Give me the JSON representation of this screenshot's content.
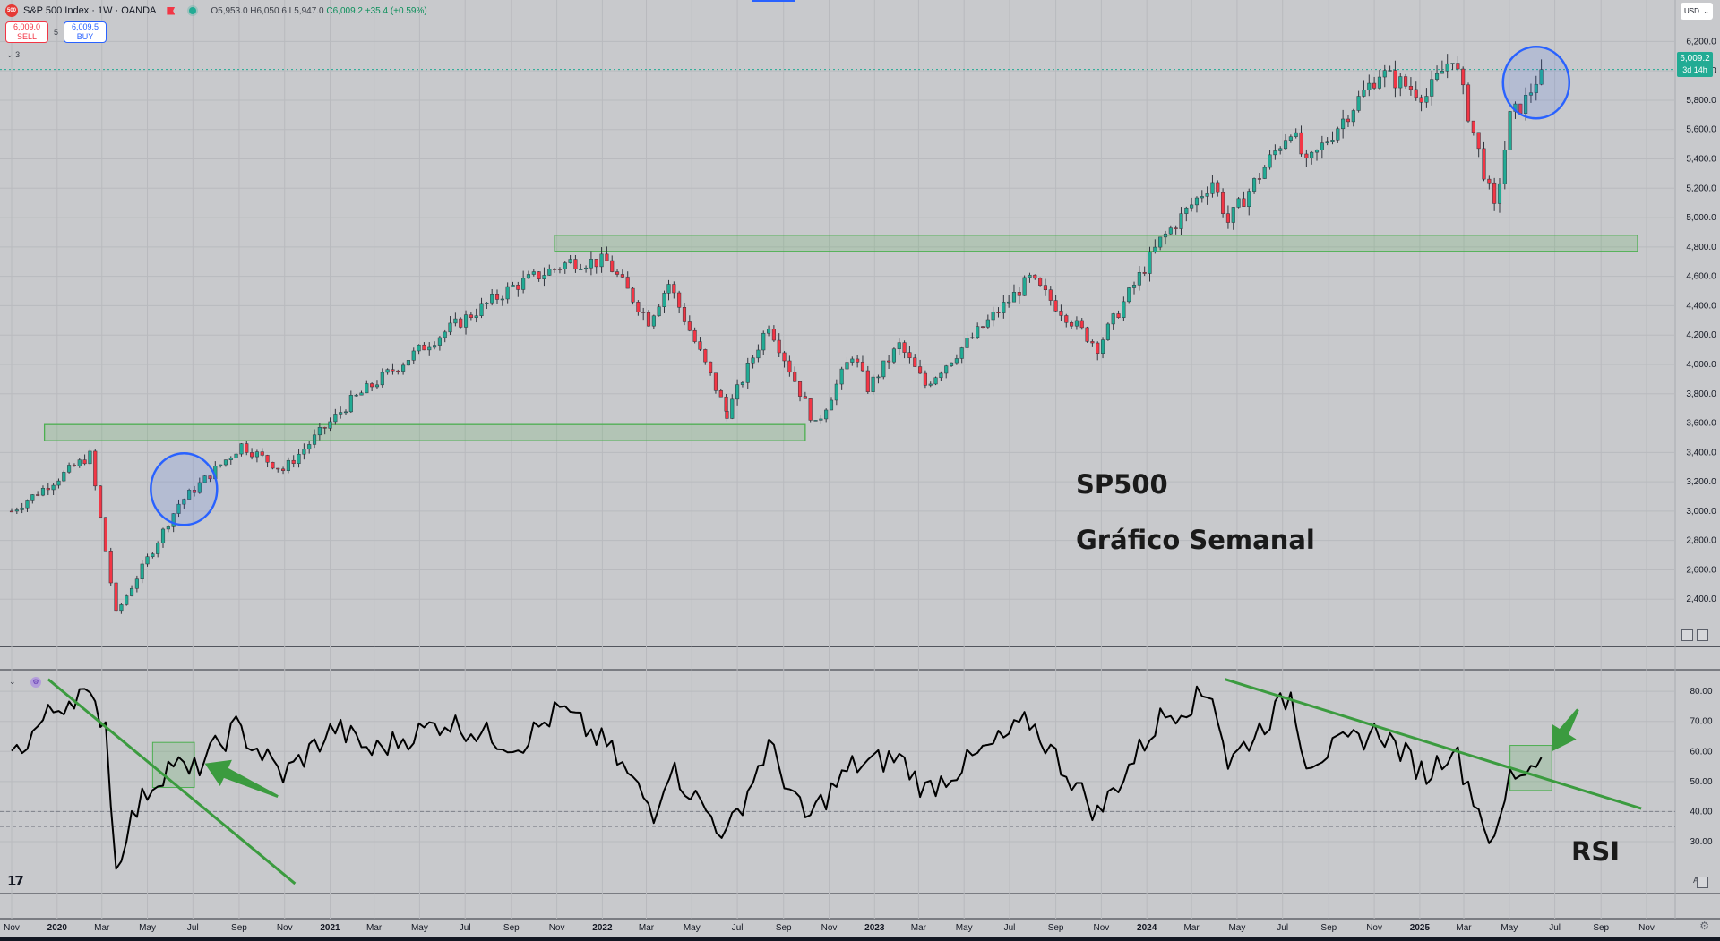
{
  "header": {
    "symbol_title": "S&P 500 Index · 1W · OANDA",
    "logo_text": "500",
    "open": "O5,953.0",
    "high": "H6,050.6",
    "low": "L5,947.0",
    "close_change": "C6,009.2 +35.4 (+0.59%)",
    "collapse_count": "3"
  },
  "trade": {
    "sell_price": "6,009.0",
    "sell_label": "SELL",
    "spread": "5",
    "buy_price": "6,009.5",
    "buy_label": "BUY"
  },
  "currency": "USD",
  "last_price": {
    "value": "6,009.2",
    "countdown": "3d 14h",
    "color": "#22ab94"
  },
  "annotations": {
    "title": "SP500",
    "subtitle": "Gráfico Semanal",
    "rsi_label": "RSI"
  },
  "indicator": {
    "toggle_letter": "A"
  },
  "colors": {
    "up": "#22ab94",
    "down": "#f23645",
    "zone": "#4caf50",
    "circle": "#2962ff",
    "rsi_line": "#000000"
  },
  "chart_data": [
    {
      "type": "candlestick",
      "title": "S&P 500 Index · 1W · OANDA",
      "x_axis_labels": [
        "Nov",
        "2020",
        "Mar",
        "May",
        "Jul",
        "Sep",
        "Nov",
        "2021",
        "Mar",
        "May",
        "Jul",
        "Sep",
        "Nov",
        "2022",
        "Mar",
        "May",
        "Jul",
        "Sep",
        "Nov",
        "2023",
        "Mar",
        "May",
        "Jul",
        "Sep",
        "Nov",
        "2024",
        "Mar",
        "May",
        "Jul",
        "Sep",
        "Nov",
        "2025",
        "Mar",
        "May",
        "Jul",
        "Sep",
        "Nov"
      ],
      "x_axis_dates": [
        "2019-11-01",
        "2020-01-01",
        "2020-03-01",
        "2020-05-01",
        "2020-07-01",
        "2020-09-01",
        "2020-11-01",
        "2021-01-01",
        "2021-03-01",
        "2021-05-01",
        "2021-07-01",
        "2021-09-01",
        "2021-11-01",
        "2022-01-01",
        "2022-03-01",
        "2022-05-01",
        "2022-07-01",
        "2022-09-01",
        "2022-11-01",
        "2023-01-01",
        "2023-03-01",
        "2023-05-01",
        "2023-07-01",
        "2023-09-01",
        "2023-11-01",
        "2024-01-01",
        "2024-03-01",
        "2024-05-01",
        "2024-07-01",
        "2024-09-01",
        "2024-11-01",
        "2025-01-01",
        "2025-03-01",
        "2025-05-01",
        "2025-07-01",
        "2025-09-01",
        "2025-11-01"
      ],
      "y_ticks": [
        "6,200.0",
        "6,000.0",
        "5,800.0",
        "5,600.0",
        "5,400.0",
        "5,200.0",
        "5,000.0",
        "4,800.0",
        "4,600.0",
        "4,400.0",
        "4,200.0",
        "4,000.0",
        "3,800.0",
        "3,600.0",
        "3,400.0",
        "3,200.0",
        "3,000.0",
        "2,800.0",
        "2,600.0",
        "2,400.0"
      ],
      "y_tick_values": [
        6200,
        6000,
        5800,
        5600,
        5400,
        5200,
        5000,
        4800,
        4600,
        4400,
        4200,
        4000,
        3800,
        3600,
        3400,
        3200,
        3000,
        2800,
        2600,
        2400
      ],
      "ylim": [
        2200,
        6300
      ],
      "key_points": [
        {
          "date": "2019-11-01",
          "close": 3000
        },
        {
          "date": "2020-02-14",
          "close": 3380
        },
        {
          "date": "2020-03-20",
          "close": 2300
        },
        {
          "date": "2020-06-12",
          "close": 3050
        },
        {
          "date": "2020-09-04",
          "close": 3450
        },
        {
          "date": "2020-10-30",
          "close": 3280
        },
        {
          "date": "2021-01-29",
          "close": 3750
        },
        {
          "date": "2021-05-14",
          "close": 4150
        },
        {
          "date": "2021-09-03",
          "close": 4530
        },
        {
          "date": "2021-11-19",
          "close": 4700
        },
        {
          "date": "2022-01-07",
          "close": 4700
        },
        {
          "date": "2022-03-04",
          "close": 4300
        },
        {
          "date": "2022-03-31",
          "close": 4550
        },
        {
          "date": "2022-06-17",
          "close": 3670
        },
        {
          "date": "2022-08-12",
          "close": 4280
        },
        {
          "date": "2022-10-14",
          "close": 3580
        },
        {
          "date": "2022-12-02",
          "close": 4070
        },
        {
          "date": "2022-12-23",
          "close": 3840
        },
        {
          "date": "2023-02-03",
          "close": 4130
        },
        {
          "date": "2023-03-10",
          "close": 3860
        },
        {
          "date": "2023-07-28",
          "close": 4580
        },
        {
          "date": "2023-10-27",
          "close": 4120
        },
        {
          "date": "2024-01-19",
          "close": 4840
        },
        {
          "date": "2024-03-29",
          "close": 5250
        },
        {
          "date": "2024-04-19",
          "close": 4970
        },
        {
          "date": "2024-07-12",
          "close": 5610
        },
        {
          "date": "2024-08-02",
          "close": 5350
        },
        {
          "date": "2024-11-08",
          "close": 5990
        },
        {
          "date": "2025-01-10",
          "close": 5830
        },
        {
          "date": "2025-02-14",
          "close": 6110
        },
        {
          "date": "2025-04-11",
          "close": 5050
        },
        {
          "date": "2025-05-02",
          "close": 5680
        },
        {
          "date": "2025-05-23",
          "close": 5800
        },
        {
          "date": "2025-06-13",
          "close": 6009.2
        }
      ],
      "support_zones": [
        {
          "from_date": "2019-12-15",
          "to_date": "2022-09-30",
          "low": 3480,
          "high": 3590
        },
        {
          "from_date": "2021-10-29",
          "to_date": "2025-10-20",
          "low": 4770,
          "high": 4880
        }
      ],
      "highlight_circles": [
        {
          "center_date": "2020-06-19",
          "center_value": 3150
        },
        {
          "center_date": "2025-06-06",
          "center_value": 5920
        }
      ]
    },
    {
      "type": "line",
      "title": "RSI",
      "y_ticks": [
        "80.00",
        "70.00",
        "60.00",
        "50.00",
        "40.00",
        "30.00"
      ],
      "y_tick_values": [
        80,
        70,
        60,
        50,
        40,
        30
      ],
      "ylim": [
        13,
        86
      ],
      "reference_levels": [
        40,
        35
      ],
      "key_points": [
        {
          "date": "2019-11-01",
          "value": 58
        },
        {
          "date": "2019-12-20",
          "value": 72
        },
        {
          "date": "2020-01-31",
          "value": 80
        },
        {
          "date": "2020-03-06",
          "value": 70
        },
        {
          "date": "2020-03-20",
          "value": 20
        },
        {
          "date": "2020-04-03",
          "value": 34
        },
        {
          "date": "2020-05-01",
          "value": 47
        },
        {
          "date": "2020-06-05",
          "value": 57
        },
        {
          "date": "2020-06-26",
          "value": 52
        },
        {
          "date": "2020-08-28",
          "value": 68
        },
        {
          "date": "2020-10-30",
          "value": 52
        },
        {
          "date": "2021-01-08",
          "value": 68
        },
        {
          "date": "2021-02-26",
          "value": 60
        },
        {
          "date": "2021-06-04",
          "value": 70
        },
        {
          "date": "2021-09-10",
          "value": 62
        },
        {
          "date": "2021-11-05",
          "value": 74
        },
        {
          "date": "2022-01-07",
          "value": 62
        },
        {
          "date": "2022-03-11",
          "value": 40
        },
        {
          "date": "2022-04-01",
          "value": 55
        },
        {
          "date": "2022-06-17",
          "value": 32
        },
        {
          "date": "2022-08-12",
          "value": 62
        },
        {
          "date": "2022-09-30",
          "value": 37
        },
        {
          "date": "2022-12-02",
          "value": 55
        },
        {
          "date": "2023-02-03",
          "value": 58
        },
        {
          "date": "2023-03-10",
          "value": 47
        },
        {
          "date": "2023-07-28",
          "value": 70
        },
        {
          "date": "2023-10-27",
          "value": 39
        },
        {
          "date": "2024-01-19",
          "value": 71
        },
        {
          "date": "2024-03-29",
          "value": 80
        },
        {
          "date": "2024-04-19",
          "value": 56
        },
        {
          "date": "2024-07-12",
          "value": 79
        },
        {
          "date": "2024-08-02",
          "value": 57
        },
        {
          "date": "2024-11-08",
          "value": 67
        },
        {
          "date": "2025-01-10",
          "value": 52
        },
        {
          "date": "2025-02-14",
          "value": 62
        },
        {
          "date": "2025-04-11",
          "value": 28
        },
        {
          "date": "2025-05-02",
          "value": 52
        },
        {
          "date": "2025-05-23",
          "value": 54
        },
        {
          "date": "2025-06-13",
          "value": 58
        }
      ],
      "trendlines": [
        {
          "from_date": "2019-12-20",
          "from_value": 84,
          "to_date": "2020-11-15",
          "to_value": 16
        },
        {
          "from_date": "2024-04-15",
          "from_value": 84,
          "to_date": "2025-10-25",
          "to_value": 41
        }
      ],
      "highlight_boxes": [
        {
          "from_date": "2020-05-08",
          "to_date": "2020-07-03",
          "low": 48,
          "high": 63
        },
        {
          "from_date": "2025-05-02",
          "to_date": "2025-06-27",
          "low": 47,
          "high": 62
        }
      ],
      "arrows": [
        {
          "from_date": "2020-10-23",
          "from_value": 45,
          "to_date": "2020-07-17",
          "to_value": 56
        },
        {
          "from_date": "2025-08-01",
          "from_value": 74,
          "to_date": "2025-06-27",
          "to_value": 60
        }
      ]
    }
  ]
}
